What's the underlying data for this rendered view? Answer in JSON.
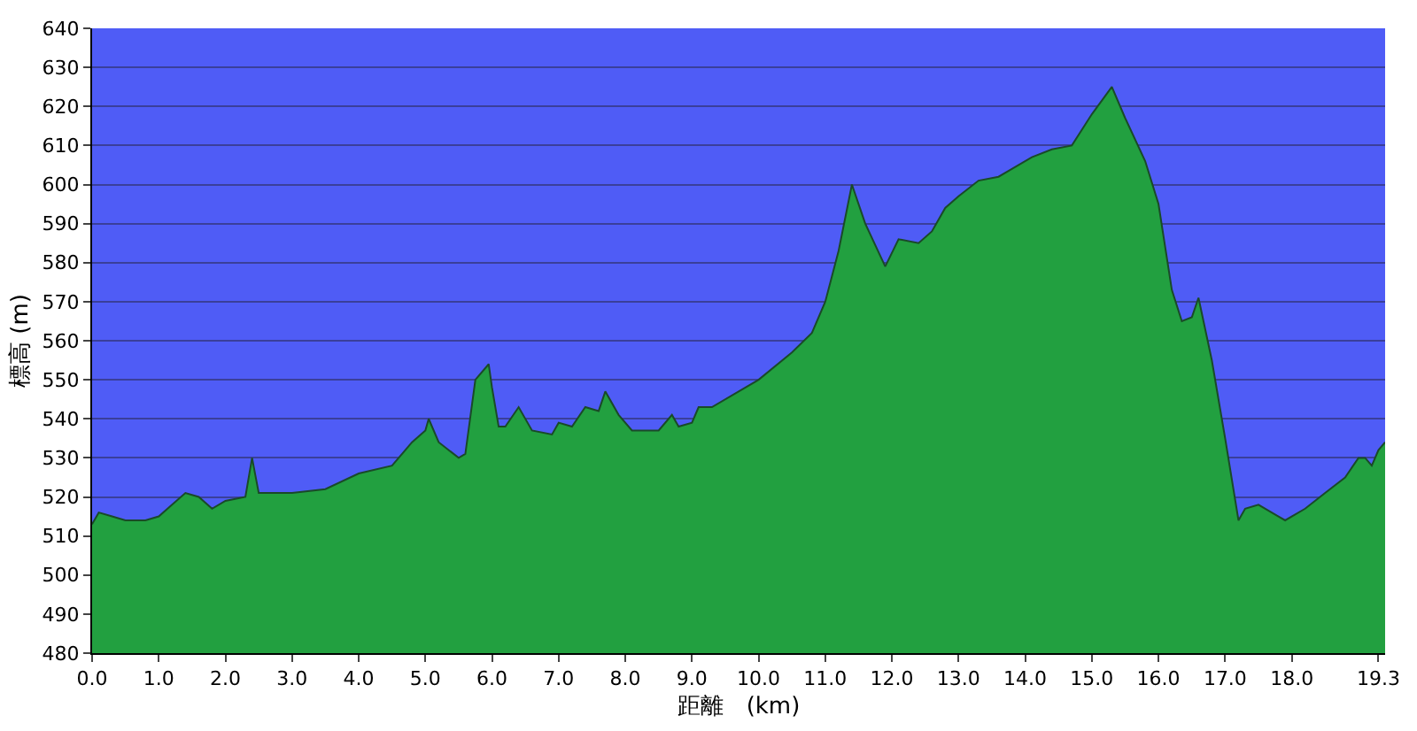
{
  "chart_data": {
    "type": "area",
    "xlabel": "距離　(km)",
    "ylabel": "標高 (m)",
    "color": "#22a040",
    "grid": "y",
    "x": [
      0,
      0.1,
      0.3,
      0.5,
      0.8,
      1.0,
      1.2,
      1.4,
      1.6,
      1.8,
      2.0,
      2.3,
      2.4,
      2.5,
      2.8,
      3.0,
      3.5,
      4.0,
      4.5,
      4.8,
      5.0,
      5.05,
      5.2,
      5.5,
      5.6,
      5.75,
      5.95,
      6.0,
      6.1,
      6.2,
      6.4,
      6.6,
      6.9,
      7.0,
      7.2,
      7.4,
      7.6,
      7.7,
      7.9,
      8.1,
      8.5,
      8.7,
      8.8,
      9.0,
      9.1,
      9.3,
      9.7,
      10.0,
      10.5,
      10.8,
      11.0,
      11.2,
      11.4,
      11.6,
      11.9,
      12.1,
      12.4,
      12.6,
      12.8,
      13.0,
      13.3,
      13.6,
      13.8,
      14.1,
      14.4,
      14.7,
      15.0,
      15.3,
      15.5,
      15.8,
      16.0,
      16.2,
      16.35,
      16.5,
      16.6,
      16.8,
      17.0,
      17.2,
      17.3,
      17.5,
      17.8,
      17.9,
      18.2,
      18.5,
      18.8,
      19.0,
      19.1,
      19.2,
      19.3,
      19.4
    ],
    "values": [
      513,
      516,
      515,
      514,
      514,
      515,
      518,
      521,
      520,
      517,
      519,
      520,
      530,
      521,
      521,
      521,
      522,
      526,
      528,
      534,
      537,
      540,
      534,
      530,
      531,
      550,
      554,
      548,
      538,
      538,
      543,
      537,
      536,
      539,
      538,
      543,
      542,
      547,
      541,
      537,
      537,
      541,
      538,
      539,
      543,
      543,
      547,
      550,
      557,
      562,
      570,
      583,
      600,
      590,
      579,
      586,
      585,
      588,
      594,
      597,
      601,
      602,
      604,
      607,
      609,
      610,
      618,
      625,
      617,
      606,
      595,
      573,
      565,
      566,
      571,
      555,
      535,
      514,
      517,
      518,
      515,
      514,
      517,
      521,
      525,
      530,
      530,
      528,
      532,
      534
    ],
    "xlim": [
      0,
      19.4
    ],
    "ylim": [
      480,
      640
    ],
    "xticks": [
      {
        "value": 0,
        "label": "0.0"
      },
      {
        "value": 1,
        "label": "1.0"
      },
      {
        "value": 2,
        "label": "2.0"
      },
      {
        "value": 3,
        "label": "3.0"
      },
      {
        "value": 4,
        "label": "4.0"
      },
      {
        "value": 5,
        "label": "5.0"
      },
      {
        "value": 6,
        "label": "6.0"
      },
      {
        "value": 7,
        "label": "7.0"
      },
      {
        "value": 8,
        "label": "8.0"
      },
      {
        "value": 9,
        "label": "9.0"
      },
      {
        "value": 10,
        "label": "10.0"
      },
      {
        "value": 11,
        "label": "11.0"
      },
      {
        "value": 12,
        "label": "12.0"
      },
      {
        "value": 13,
        "label": "13.0"
      },
      {
        "value": 14,
        "label": "14.0"
      },
      {
        "value": 15,
        "label": "15.0"
      },
      {
        "value": 16,
        "label": "16.0"
      },
      {
        "value": 17,
        "label": "17.0"
      },
      {
        "value": 18,
        "label": "18.0"
      },
      19.3
    ],
    "yticks": [
      480,
      490,
      500,
      510,
      520,
      530,
      540,
      550,
      560,
      570,
      580,
      590,
      600,
      610,
      620,
      630,
      640
    ]
  }
}
